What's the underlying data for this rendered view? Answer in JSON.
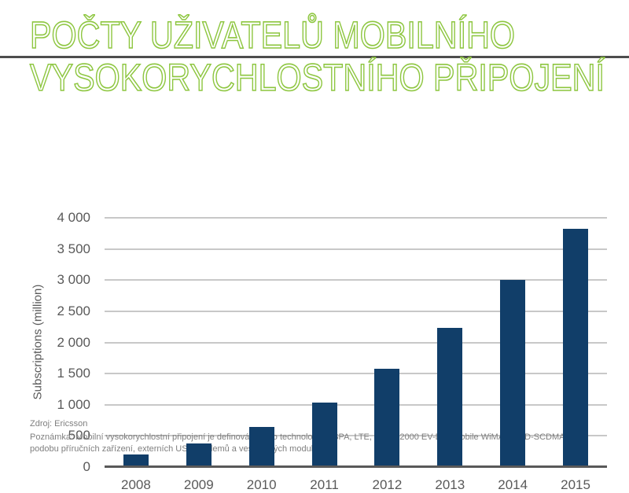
{
  "title": {
    "line1": "POČTY UŽIVATELŮ MOBILNÍHO",
    "line2": "VYSOKORYCHLOSTNÍHO PŘIPOJENÍ"
  },
  "footer": {
    "source": "Zdroj: Ericsson",
    "note": "Poznámka: Mobilní vysokorychlostní připojení je definováno jako technologie HSPA, LTE, CDMA2000 EV-DO, Mobile WiMAX a TD-SCDMA. Mají podobu příručních zařízení, externích USB modemů a vestavěných modulů."
  },
  "chart_data": {
    "type": "bar",
    "title": "Počty uživatelů mobilního vysokorychlostního připojení",
    "categories": [
      "2008",
      "2009",
      "2010",
      "2011",
      "2012",
      "2013",
      "2014",
      "2015"
    ],
    "values": [
      200,
      375,
      650,
      1040,
      1575,
      2230,
      3000,
      3820
    ],
    "xlabel": "",
    "ylabel": "Subscriptions (million)",
    "ylim": [
      0,
      4000
    ],
    "ytick_values": [
      0,
      500,
      1000,
      1500,
      2000,
      2500,
      3000,
      3500,
      4000
    ],
    "ytick_labels": [
      "0",
      "500",
      "1 000",
      "1 500",
      "2 000",
      "2 500",
      "3 000",
      "3 500",
      "4 000"
    ],
    "grid": true,
    "legend": "none",
    "bar_color": "#113e69"
  },
  "colors": {
    "title_green": "#8dc63f",
    "bar_navy": "#113e69",
    "axis_text_gray": "#595959",
    "gridline_gray": "#c8c8c8",
    "divider_gray": "#4d4d4d",
    "footer_gray": "#7f7f7f"
  }
}
